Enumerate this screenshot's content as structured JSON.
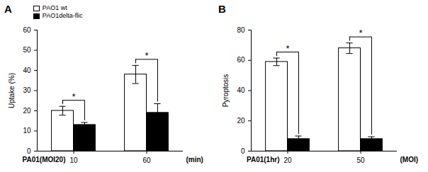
{
  "chart_data": [
    {
      "type": "bar",
      "title": "A",
      "y_label": "Uptake (%)",
      "x_label": "PA01(MOI20)",
      "x_unit": "(min)",
      "categories": [
        "10",
        "60"
      ],
      "series": [
        {
          "name": "PAO1 wt",
          "color": "#ffffff",
          "values": [
            20,
            38
          ],
          "errors": [
            2.2,
            4.5
          ]
        },
        {
          "name": "PAO1delta-flic",
          "color": "#000000",
          "values": [
            13,
            19
          ],
          "errors": [
            1.2,
            4.5
          ]
        }
      ],
      "ylim": [
        0,
        60
      ],
      "yticks": [
        0,
        10,
        20,
        30,
        40,
        50,
        60
      ],
      "legend": "top-left",
      "annotations": [
        {
          "category": "10",
          "text": "*"
        },
        {
          "category": "60",
          "text": "*"
        }
      ]
    },
    {
      "type": "bar",
      "title": "B",
      "y_label": "Pyroptosis",
      "x_label": "PA01(1hr)",
      "x_unit": "(MOI)",
      "categories": [
        "20",
        "50"
      ],
      "series": [
        {
          "name": "PAO1 wt",
          "color": "#ffffff",
          "values": [
            59,
            68
          ],
          "errors": [
            2.5,
            3.5
          ]
        },
        {
          "name": "PAO1delta-flic",
          "color": "#000000",
          "values": [
            8,
            8
          ],
          "errors": [
            2,
            1.5
          ]
        }
      ],
      "ylim": [
        0,
        80
      ],
      "yticks": [
        0,
        20,
        40,
        60,
        80
      ],
      "annotations": [
        {
          "category": "20",
          "text": "*"
        },
        {
          "category": "50",
          "text": "*"
        }
      ]
    }
  ]
}
